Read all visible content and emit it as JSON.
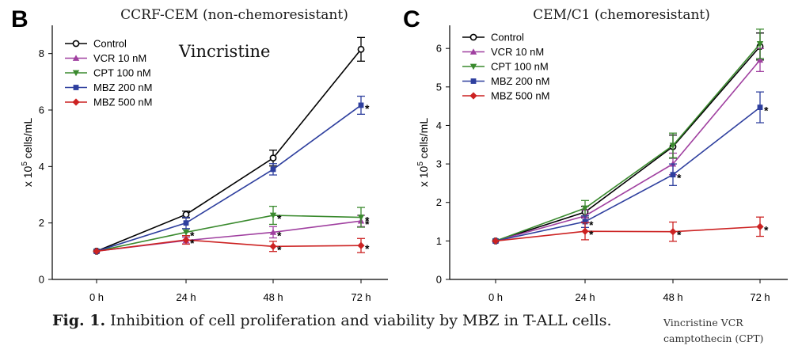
{
  "caption": {
    "lead": "Fig. 1.",
    "text": "Inhibition of cell proliferation and viability by MBZ in T-ALL cells."
  },
  "abbreviations": [
    "Vincristine  VCR",
    "camptothecin (CPT)"
  ],
  "chart_data": [
    {
      "type": "line",
      "panel_label": "B",
      "title": "CCRF-CEM (non-chemoresistant)",
      "annotation": "Vincristine",
      "ylabel_prefix": "x 10",
      "ylabel_exp": "5",
      "ylabel_suffix": " cells/mL",
      "xlabel": "",
      "categories": [
        "0 h",
        "24 h",
        "48 h",
        "72 h"
      ],
      "ylim": [
        0,
        9
      ],
      "yticks": [
        0,
        2,
        4,
        6,
        8
      ],
      "legend_position": "top-left",
      "grid": false,
      "series": [
        {
          "name": "Control",
          "color": "#000000",
          "marker": "open-circle",
          "values": [
            1.0,
            2.3,
            4.3,
            8.15
          ],
          "errors": [
            0.05,
            0.12,
            0.28,
            0.42
          ],
          "sig": [
            "",
            "",
            "",
            ""
          ]
        },
        {
          "name": "VCR 10 nM",
          "color": "#a040a0",
          "marker": "triangle-up",
          "values": [
            1.0,
            1.38,
            1.67,
            2.07
          ],
          "errors": [
            0.05,
            0.12,
            0.2,
            0.2
          ],
          "sig": [
            "",
            "",
            "*",
            "*"
          ]
        },
        {
          "name": "CPT 100 nM",
          "color": "#3a8a2e",
          "marker": "triangle-down",
          "values": [
            1.0,
            1.67,
            2.27,
            2.2
          ],
          "errors": [
            0.05,
            0.12,
            0.32,
            0.35
          ],
          "sig": [
            "",
            "*",
            "*",
            "*"
          ]
        },
        {
          "name": "MBZ 200 nM",
          "color": "#2e3f9e",
          "marker": "square",
          "values": [
            1.0,
            2.0,
            3.9,
            6.17
          ],
          "errors": [
            0.05,
            0.2,
            0.2,
            0.32
          ],
          "sig": [
            "",
            "",
            "",
            "*"
          ]
        },
        {
          "name": "MBZ 500 nM",
          "color": "#cc2222",
          "marker": "diamond",
          "values": [
            1.0,
            1.4,
            1.17,
            1.2
          ],
          "errors": [
            0.05,
            0.15,
            0.18,
            0.25
          ],
          "sig": [
            "",
            "*",
            "*",
            "*"
          ]
        }
      ]
    },
    {
      "type": "line",
      "panel_label": "C",
      "title": "CEM/C1 (chemoresistant)",
      "annotation": "",
      "ylabel_prefix": "x 10",
      "ylabel_exp": "5",
      "ylabel_suffix": " cells/mL",
      "xlabel": "",
      "categories": [
        "0 h",
        "24 h",
        "48 h",
        "72 h"
      ],
      "ylim": [
        0,
        6.6
      ],
      "yticks": [
        0,
        1,
        2,
        3,
        4,
        5,
        6
      ],
      "legend_position": "top-left",
      "grid": false,
      "series": [
        {
          "name": "Control",
          "color": "#000000",
          "marker": "open-circle",
          "values": [
            1.0,
            1.75,
            3.45,
            6.05
          ],
          "errors": [
            0.03,
            0.15,
            0.3,
            0.35
          ],
          "sig": [
            "",
            "",
            "",
            ""
          ]
        },
        {
          "name": "VCR 10 nM",
          "color": "#a040a0",
          "marker": "triangle-up",
          "values": [
            1.0,
            1.65,
            3.0,
            5.7
          ],
          "errors": [
            0.03,
            0.15,
            0.28,
            0.3
          ],
          "sig": [
            "",
            "",
            "",
            ""
          ]
        },
        {
          "name": "CPT 100 nM",
          "color": "#3a8a2e",
          "marker": "triangle-down",
          "values": [
            1.0,
            1.85,
            3.48,
            6.12
          ],
          "errors": [
            0.03,
            0.2,
            0.32,
            0.38
          ],
          "sig": [
            "",
            "",
            "",
            ""
          ]
        },
        {
          "name": "MBZ 200 nM",
          "color": "#2e3f9e",
          "marker": "square",
          "values": [
            1.0,
            1.5,
            2.72,
            4.47
          ],
          "errors": [
            0.03,
            0.15,
            0.28,
            0.4
          ],
          "sig": [
            "",
            "*",
            "*",
            "*"
          ]
        },
        {
          "name": "MBZ 500 nM",
          "color": "#cc2222",
          "marker": "diamond",
          "values": [
            1.0,
            1.25,
            1.24,
            1.37
          ],
          "errors": [
            0.03,
            0.22,
            0.25,
            0.25
          ],
          "sig": [
            "",
            "*",
            "*",
            "*"
          ]
        }
      ]
    }
  ]
}
